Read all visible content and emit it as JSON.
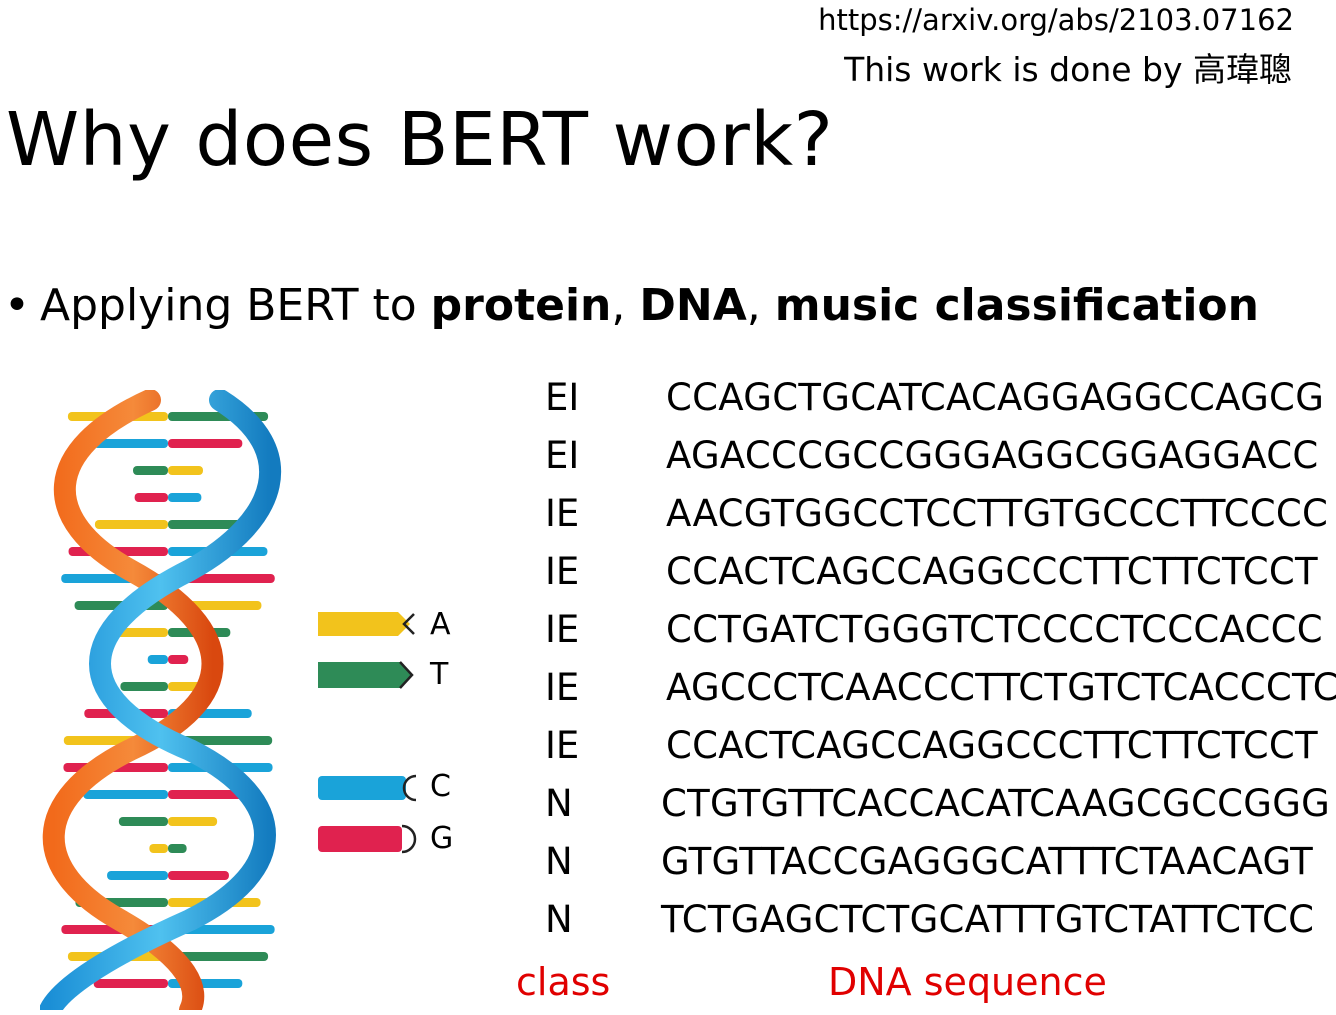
{
  "header": {
    "source": "https://arxiv.org/abs/2103.07162",
    "credit": "This work is done by 高瑋聰"
  },
  "title": "Why does BERT work?",
  "bullet": {
    "lead": "Applying BERT to ",
    "bold1": "protein",
    "sep1": ", ",
    "bold2": "DNA",
    "sep2": ", ",
    "bold3": "music classification"
  },
  "legend": {
    "items": [
      {
        "base": "A",
        "color": "#f2c31c",
        "direction": "left"
      },
      {
        "base": "T",
        "color": "#2e8b57",
        "direction": "right"
      },
      {
        "base": "C",
        "color": "#1aa3d9",
        "direction": "left"
      },
      {
        "base": "G",
        "color": "#e0224f",
        "direction": "right"
      }
    ]
  },
  "table": {
    "rows": [
      {
        "class": "EI",
        "sequence": "CCAGCTGCATCACAGGAGGCCAGCG"
      },
      {
        "class": "EI",
        "sequence": "AGACCCGCCGGGAGGCGGAGGACC"
      },
      {
        "class": "IE",
        "sequence": "AACGTGGCCTCCTTGTGCCCTTCCCC"
      },
      {
        "class": "IE",
        "sequence": "CCACTCAGCCAGGCCCTTCTTCTCCT"
      },
      {
        "class": "IE",
        "sequence": "CCTGATCTGGGTCTCCCCTCCCACCC"
      },
      {
        "class": "IE",
        "sequence": "AGCCCTCAACCCTTCTGTCTCACCCTC"
      },
      {
        "class": "IE",
        "sequence": "CCACTCAGCCAGGCCCTTCTTCTCCT"
      },
      {
        "class": "N",
        "sequence": "CTGTGTTCACCACATCAAGCGCCGGG"
      },
      {
        "class": "N",
        "sequence": "GTGTTACCGAGGGCATTTCTAACAGT"
      },
      {
        "class": "N",
        "sequence": "TCTGAGCTCTGCATTTGTCTATTCTCC"
      }
    ]
  },
  "footer": {
    "class_label": "class",
    "sequence_label": "DNA sequence",
    "color": "#e00000"
  }
}
